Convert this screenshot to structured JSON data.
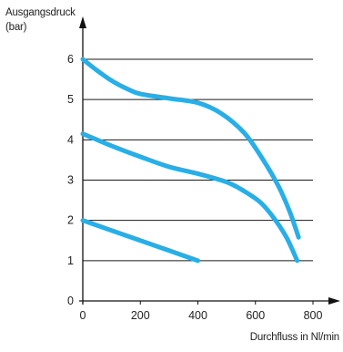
{
  "chart_data": {
    "type": "line",
    "title": "",
    "ylabel": "Ausgangsdruck",
    "yunit": "(bar)",
    "xlabel": "Durchfluss in Nl/min",
    "xlim": [
      0,
      800
    ],
    "ylim": [
      0,
      6
    ],
    "xticks": [
      0,
      200,
      400,
      600,
      800
    ],
    "yticks": [
      0,
      1,
      2,
      3,
      4,
      5,
      6
    ],
    "gridlines_y": [
      1,
      2,
      3,
      4,
      5,
      6
    ],
    "grid": "horizontal",
    "line_color": "#29aee6",
    "series": [
      {
        "points": [
          [
            0,
            6.0
          ],
          [
            50,
            5.72
          ],
          [
            100,
            5.47
          ],
          [
            150,
            5.28
          ],
          [
            200,
            5.14
          ],
          [
            300,
            5.03
          ],
          [
            400,
            4.92
          ],
          [
            480,
            4.66
          ],
          [
            560,
            4.18
          ],
          [
            620,
            3.58
          ],
          [
            680,
            2.85
          ],
          [
            720,
            2.2
          ],
          [
            750,
            1.58
          ]
        ]
      },
      {
        "points": [
          [
            0,
            4.15
          ],
          [
            50,
            4.0
          ],
          [
            100,
            3.85
          ],
          [
            200,
            3.58
          ],
          [
            300,
            3.33
          ],
          [
            400,
            3.16
          ],
          [
            500,
            2.95
          ],
          [
            560,
            2.73
          ],
          [
            620,
            2.43
          ],
          [
            670,
            2.0
          ],
          [
            710,
            1.55
          ],
          [
            745,
            1.0
          ]
        ]
      },
      {
        "points": [
          [
            0,
            2.0
          ],
          [
            100,
            1.75
          ],
          [
            200,
            1.5
          ],
          [
            300,
            1.25
          ],
          [
            400,
            1.0
          ]
        ]
      }
    ]
  }
}
